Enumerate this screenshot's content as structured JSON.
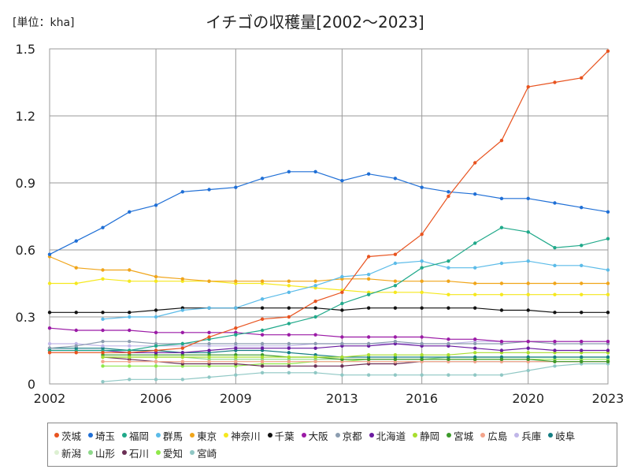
{
  "chart_data": {
    "type": "line",
    "title": "イチゴの収穫量[2002～2023]",
    "unit_label": "[単位：kha]",
    "xlim": [
      2002,
      2023
    ],
    "ylim": [
      0,
      1.5
    ],
    "x_ticks": [
      2002,
      2006,
      2009,
      2013,
      2016,
      2020,
      2023
    ],
    "y_ticks": [
      0,
      0.3,
      0.6,
      0.9,
      1.2,
      1.5
    ],
    "y_tick_labels": [
      "0",
      "0.3",
      "0.6",
      "0.9",
      "1.2",
      "1.5"
    ],
    "grid": true,
    "legend_position": "bottom",
    "series": [
      {
        "name": "茨城",
        "color": "#e8531f",
        "x": [
          2002,
          2003,
          2004,
          2005,
          2006,
          2007,
          2008,
          2009,
          2010,
          2011,
          2012,
          2013,
          2014,
          2015,
          2016,
          2017,
          2018,
          2019,
          2020,
          2021,
          2022,
          2023
        ],
        "y": [
          0.14,
          0.14,
          0.14,
          0.14,
          0.15,
          0.16,
          0.21,
          0.25,
          0.29,
          0.3,
          0.37,
          0.41,
          0.57,
          0.58,
          0.67,
          0.84,
          0.99,
          1.09,
          1.33,
          1.35,
          1.37,
          1.49
        ]
      },
      {
        "name": "埼玉",
        "color": "#1f6fd6",
        "x": [
          2002,
          2003,
          2004,
          2005,
          2006,
          2007,
          2008,
          2009,
          2010,
          2011,
          2012,
          2013,
          2014,
          2015,
          2016,
          2017,
          2018,
          2019,
          2020,
          2021,
          2022,
          2023
        ],
        "y": [
          0.58,
          0.64,
          0.7,
          0.77,
          0.8,
          0.86,
          0.87,
          0.88,
          0.92,
          0.95,
          0.95,
          0.91,
          0.94,
          0.92,
          0.88,
          0.86,
          0.85,
          0.83,
          0.83,
          0.81,
          0.79,
          0.77
        ]
      },
      {
        "name": "福岡",
        "color": "#20a98a",
        "x": [
          2002,
          2003,
          2004,
          2005,
          2006,
          2007,
          2008,
          2009,
          2010,
          2011,
          2012,
          2013,
          2014,
          2015,
          2016,
          2017,
          2018,
          2019,
          2020,
          2021,
          2022,
          2023
        ],
        "y": [
          0.15,
          0.15,
          0.15,
          0.15,
          0.17,
          0.18,
          0.2,
          0.22,
          0.24,
          0.27,
          0.3,
          0.36,
          0.4,
          0.44,
          0.52,
          0.55,
          0.63,
          0.7,
          0.68,
          0.61,
          0.62,
          0.65
        ]
      },
      {
        "name": "群馬",
        "color": "#5bbbe8",
        "x": [
          2004,
          2005,
          2006,
          2007,
          2008,
          2009,
          2010,
          2011,
          2012,
          2013,
          2014,
          2015,
          2016,
          2017,
          2018,
          2019,
          2020,
          2021,
          2022,
          2023
        ],
        "y": [
          0.29,
          0.3,
          0.3,
          0.33,
          0.34,
          0.34,
          0.38,
          0.41,
          0.44,
          0.48,
          0.49,
          0.54,
          0.55,
          0.52,
          0.52,
          0.54,
          0.55,
          0.53,
          0.53,
          0.51
        ]
      },
      {
        "name": "東京",
        "color": "#f0a51a",
        "x": [
          2002,
          2003,
          2004,
          2005,
          2006,
          2007,
          2008,
          2009,
          2010,
          2011,
          2012,
          2013,
          2014,
          2015,
          2016,
          2017,
          2018,
          2019,
          2020,
          2021,
          2022,
          2023
        ],
        "y": [
          0.57,
          0.52,
          0.51,
          0.51,
          0.48,
          0.47,
          0.46,
          0.46,
          0.46,
          0.46,
          0.46,
          0.47,
          0.47,
          0.46,
          0.46,
          0.46,
          0.45,
          0.45,
          0.45,
          0.45,
          0.45,
          0.45
        ]
      },
      {
        "name": "神奈川",
        "color": "#f5e81e",
        "x": [
          2002,
          2003,
          2004,
          2005,
          2006,
          2007,
          2008,
          2009,
          2010,
          2011,
          2012,
          2013,
          2014,
          2015,
          2016,
          2017,
          2018,
          2019,
          2020,
          2021,
          2022,
          2023
        ],
        "y": [
          0.45,
          0.45,
          0.47,
          0.46,
          0.46,
          0.46,
          0.46,
          0.45,
          0.45,
          0.44,
          0.43,
          0.42,
          0.41,
          0.41,
          0.41,
          0.4,
          0.4,
          0.4,
          0.4,
          0.4,
          0.4,
          0.4
        ]
      },
      {
        "name": "千葉",
        "color": "#111111",
        "x": [
          2002,
          2003,
          2004,
          2005,
          2006,
          2007,
          2008,
          2009,
          2010,
          2011,
          2012,
          2013,
          2014,
          2015,
          2016,
          2017,
          2018,
          2019,
          2020,
          2021,
          2022,
          2023
        ],
        "y": [
          0.32,
          0.32,
          0.32,
          0.32,
          0.33,
          0.34,
          0.34,
          0.34,
          0.34,
          0.34,
          0.34,
          0.33,
          0.34,
          0.34,
          0.34,
          0.34,
          0.34,
          0.33,
          0.33,
          0.32,
          0.32,
          0.32
        ]
      },
      {
        "name": "大阪",
        "color": "#9b1aa6",
        "x": [
          2002,
          2003,
          2004,
          2005,
          2006,
          2007,
          2008,
          2009,
          2010,
          2011,
          2012,
          2013,
          2014,
          2015,
          2016,
          2017,
          2018,
          2019,
          2020,
          2021,
          2022,
          2023
        ],
        "y": [
          0.25,
          0.24,
          0.24,
          0.24,
          0.23,
          0.23,
          0.23,
          0.23,
          0.22,
          0.22,
          0.22,
          0.21,
          0.21,
          0.21,
          0.21,
          0.2,
          0.2,
          0.19,
          0.19,
          0.19,
          0.19,
          0.19
        ]
      },
      {
        "name": "京都",
        "color": "#8c9db0",
        "x": [
          2002,
          2003,
          2004,
          2005,
          2006,
          2007,
          2008,
          2009,
          2010,
          2011,
          2012,
          2013,
          2014,
          2015,
          2016,
          2017,
          2018,
          2019,
          2020,
          2021,
          2022,
          2023
        ],
        "y": [
          0.16,
          0.17,
          0.19,
          0.19,
          0.18,
          0.18,
          0.18,
          0.18,
          0.18,
          0.18,
          0.18,
          0.18,
          0.18,
          0.19,
          0.18,
          0.18,
          0.18,
          0.18,
          0.19,
          0.18,
          0.18,
          0.18
        ]
      },
      {
        "name": "北海道",
        "color": "#6a1aa0",
        "x": [
          2002,
          2003,
          2004,
          2005,
          2006,
          2007,
          2008,
          2009,
          2010,
          2011,
          2012,
          2013,
          2014,
          2015,
          2016,
          2017,
          2018,
          2019,
          2020,
          2021,
          2022,
          2023
        ],
        "y": [
          0.15,
          0.15,
          0.15,
          0.14,
          0.14,
          0.14,
          0.15,
          0.16,
          0.16,
          0.16,
          0.16,
          0.17,
          0.17,
          0.18,
          0.17,
          0.17,
          0.16,
          0.15,
          0.16,
          0.15,
          0.15,
          0.15
        ]
      },
      {
        "name": "静岡",
        "color": "#a8de2e",
        "x": [
          2004,
          2005,
          2006,
          2007,
          2008,
          2009,
          2010,
          2011,
          2012,
          2013,
          2014,
          2015,
          2016,
          2017,
          2018,
          2019,
          2020,
          2021,
          2022,
          2023
        ],
        "y": [
          0.12,
          0.12,
          0.12,
          0.12,
          0.12,
          0.12,
          0.12,
          0.12,
          0.12,
          0.12,
          0.13,
          0.13,
          0.13,
          0.13,
          0.14,
          0.14,
          0.14,
          0.14,
          0.14,
          0.14
        ]
      },
      {
        "name": "宮城",
        "color": "#3c9a2a",
        "x": [
          2004,
          2005,
          2006,
          2007,
          2008,
          2009,
          2010,
          2011,
          2012,
          2013,
          2014,
          2015,
          2016,
          2017,
          2018,
          2019,
          2020,
          2021,
          2022,
          2023
        ],
        "y": [
          0.13,
          0.13,
          0.13,
          0.13,
          0.13,
          0.13,
          0.13,
          0.12,
          0.12,
          0.11,
          0.11,
          0.11,
          0.11,
          0.11,
          0.11,
          0.11,
          0.11,
          0.1,
          0.1,
          0.1
        ]
      },
      {
        "name": "広島",
        "color": "#f3a38a",
        "x": [
          2004,
          2005,
          2006,
          2007,
          2008,
          2009,
          2010,
          2011,
          2012,
          2013,
          2014,
          2015,
          2016,
          2017,
          2018,
          2019,
          2020,
          2021,
          2022,
          2023
        ],
        "y": [
          0.1,
          0.1,
          0.1,
          0.1,
          0.1,
          0.1,
          0.1,
          0.1,
          0.1,
          0.1,
          0.1,
          0.1,
          0.1,
          0.1,
          0.1,
          0.1,
          0.1,
          0.1,
          0.1,
          0.1
        ]
      },
      {
        "name": "兵庫",
        "color": "#c0b6e8",
        "x": [
          2002,
          2003,
          2004,
          2005,
          2006,
          2007,
          2008,
          2009,
          2010,
          2011,
          2012,
          2013,
          2014,
          2015,
          2016,
          2017,
          2018,
          2019,
          2020,
          2021,
          2022,
          2023
        ],
        "y": [
          0.18,
          0.18,
          0.17,
          0.17,
          0.17,
          0.17,
          0.17,
          0.17,
          0.17,
          0.17,
          0.18,
          0.18,
          0.18,
          0.18,
          0.18,
          0.18,
          0.19,
          0.19,
          0.19,
          0.19,
          0.19,
          0.19
        ]
      },
      {
        "name": "岐阜",
        "color": "#137d82",
        "x": [
          2002,
          2003,
          2004,
          2005,
          2006,
          2007,
          2008,
          2009,
          2010,
          2011,
          2012,
          2013,
          2014,
          2015,
          2016,
          2017,
          2018,
          2019,
          2020,
          2021,
          2022,
          2023
        ],
        "y": [
          0.16,
          0.16,
          0.16,
          0.15,
          0.15,
          0.14,
          0.14,
          0.15,
          0.15,
          0.14,
          0.13,
          0.12,
          0.12,
          0.12,
          0.12,
          0.12,
          0.12,
          0.12,
          0.12,
          0.12,
          0.12,
          0.12
        ]
      },
      {
        "name": "新潟",
        "color": "#ddf0d2",
        "x": [
          2004,
          2005,
          2006,
          2007,
          2008,
          2009,
          2010,
          2011,
          2012,
          2013,
          2014,
          2015,
          2016,
          2017,
          2018,
          2019,
          2020,
          2021,
          2022,
          2023
        ],
        "y": [
          0.1,
          0.1,
          0.1,
          0.1,
          0.1,
          0.1,
          0.1,
          0.1,
          0.1,
          0.1,
          0.1,
          0.1,
          0.1,
          0.1,
          0.1,
          0.1,
          0.1,
          0.1,
          0.1,
          0.1
        ]
      },
      {
        "name": "山形",
        "color": "#8ed88a",
        "x": [
          2004,
          2005,
          2006,
          2007,
          2008,
          2009,
          2010,
          2011,
          2012,
          2013,
          2014,
          2015,
          2016,
          2017,
          2018,
          2019,
          2020,
          2021,
          2022,
          2023
        ],
        "y": [
          0.12,
          0.12,
          0.12,
          0.12,
          0.11,
          0.11,
          0.11,
          0.11,
          0.11,
          0.11,
          0.11,
          0.11,
          0.11,
          0.12,
          0.12,
          0.12,
          0.12,
          0.12,
          0.12,
          0.12
        ]
      },
      {
        "name": "石川",
        "color": "#6b2f55",
        "x": [
          2004,
          2005,
          2006,
          2007,
          2008,
          2009,
          2010,
          2011,
          2012,
          2013,
          2014,
          2015,
          2016,
          2017,
          2018,
          2019,
          2020,
          2021,
          2022,
          2023
        ],
        "y": [
          0.12,
          0.11,
          0.1,
          0.09,
          0.09,
          0.09,
          0.08,
          0.08,
          0.08,
          0.08,
          0.09,
          0.09,
          0.1,
          0.1,
          0.1,
          0.1,
          0.1,
          0.1,
          0.1,
          0.1
        ]
      },
      {
        "name": "愛知",
        "color": "#8fe84a",
        "x": [
          2004,
          2005,
          2006,
          2007,
          2008,
          2009,
          2010,
          2011,
          2012,
          2013,
          2014,
          2015,
          2016,
          2017,
          2018,
          2019,
          2020,
          2021,
          2022,
          2023
        ],
        "y": [
          0.08,
          0.08,
          0.08,
          0.08,
          0.08,
          0.08,
          0.09,
          0.09,
          0.1,
          0.1,
          0.11,
          0.11,
          0.11,
          0.11,
          0.11,
          0.11,
          0.11,
          0.11,
          0.11,
          0.11
        ]
      },
      {
        "name": "宮崎",
        "color": "#8fc7c4",
        "x": [
          2004,
          2005,
          2006,
          2007,
          2008,
          2009,
          2010,
          2011,
          2012,
          2013,
          2014,
          2015,
          2016,
          2017,
          2018,
          2019,
          2020,
          2021,
          2022,
          2023
        ],
        "y": [
          0.01,
          0.02,
          0.02,
          0.02,
          0.03,
          0.04,
          0.05,
          0.05,
          0.05,
          0.04,
          0.04,
          0.04,
          0.04,
          0.04,
          0.04,
          0.04,
          0.06,
          0.08,
          0.09,
          0.09
        ]
      }
    ]
  }
}
